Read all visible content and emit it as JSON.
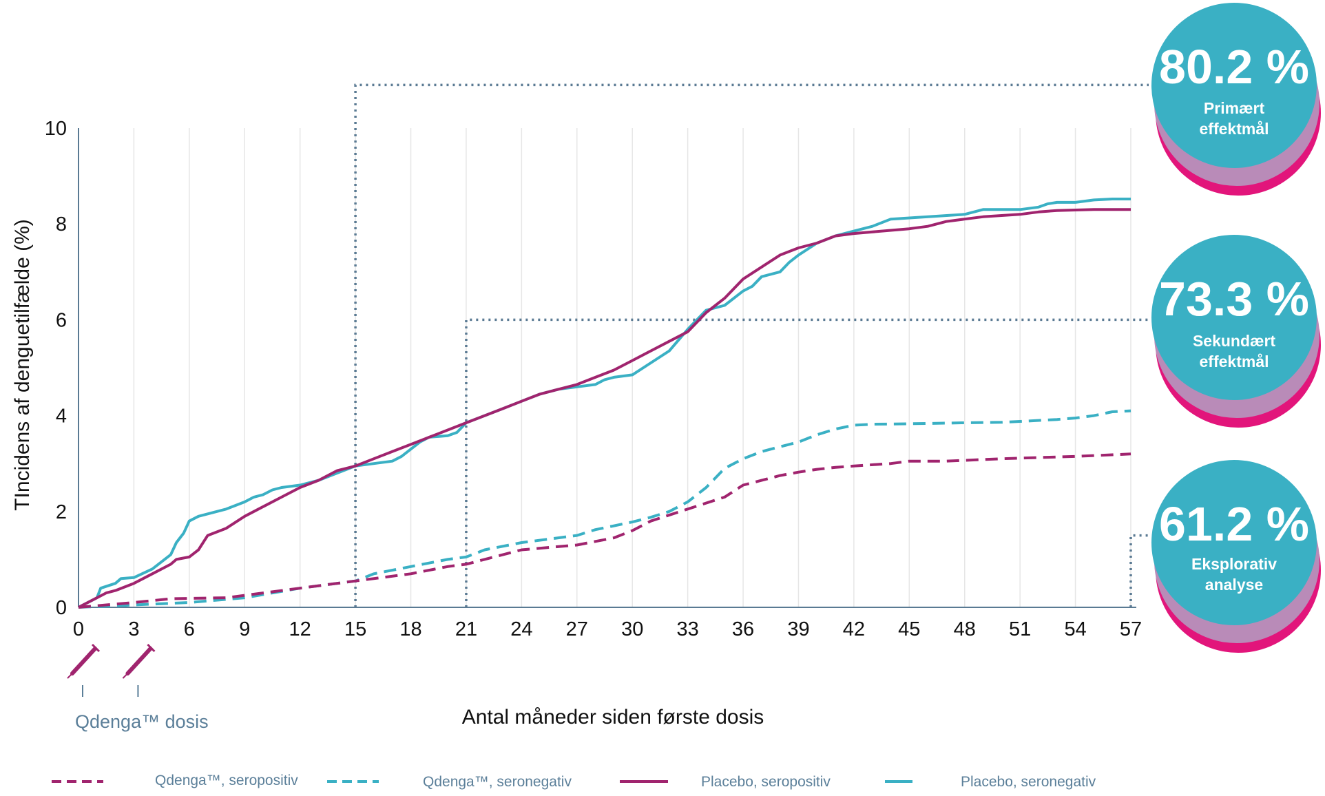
{
  "colors": {
    "placebo_seropositive": "#a0246e",
    "placebo_seronegative": "#3ab0c4",
    "qdenga_seropositive": "#a0246e",
    "qdenga_seronegative": "#3ab0c4",
    "reference_lines": "#5a7a93",
    "badge_fill": "#3ab0c4",
    "badge_shadow": "#e2157b",
    "dose_label": "#5b7f99"
  },
  "chart_data": {
    "type": "line",
    "xlabel": "Antal måneder siden første dosis",
    "ylabel": "TIncidens af denguetilfælde (%)",
    "xlim": [
      0,
      57
    ],
    "ylim": [
      0,
      10
    ],
    "x_ticks": [
      0,
      3,
      6,
      9,
      12,
      15,
      18,
      21,
      24,
      27,
      30,
      33,
      36,
      39,
      42,
      45,
      48,
      51,
      54,
      57
    ],
    "x_tick_labels": [
      "0",
      "3",
      "6",
      "9",
      "12",
      "15",
      "18",
      "21",
      "24",
      "27",
      "30",
      "33",
      "36",
      "39",
      "42",
      "45",
      "48",
      "51",
      "54",
      "57"
    ],
    "y_ticks": [
      0,
      2,
      4,
      6,
      8,
      10
    ],
    "y_tick_labels": [
      "0",
      "2",
      "4",
      "6",
      "8",
      "10"
    ],
    "grid": "vertical",
    "legend_position": "bottom",
    "series": [
      {
        "name": "Placebo, seronegativ",
        "style": "solid",
        "color": "#3ab0c4",
        "x": [
          0,
          1,
          1.2,
          2,
          2.3,
          3,
          4,
          5,
          5.3,
          5.7,
          6,
          6.5,
          7,
          8,
          9,
          9.5,
          10,
          10.5,
          11,
          12,
          13,
          14,
          15,
          16,
          17,
          17.5,
          18,
          18.5,
          19,
          20,
          20.5,
          21,
          22,
          23,
          24,
          25,
          26,
          27,
          28,
          28.5,
          29,
          30,
          31,
          32,
          33,
          34,
          35,
          36,
          36.5,
          37,
          38,
          38.5,
          39,
          40,
          41,
          42,
          43,
          44,
          48,
          49,
          51,
          52,
          52.5,
          53,
          54,
          55,
          56,
          57
        ],
        "y": [
          0,
          0.2,
          0.4,
          0.5,
          0.6,
          0.62,
          0.8,
          1.1,
          1.35,
          1.55,
          1.8,
          1.9,
          1.95,
          2.05,
          2.2,
          2.3,
          2.35,
          2.45,
          2.5,
          2.55,
          2.65,
          2.8,
          2.95,
          3.0,
          3.05,
          3.15,
          3.3,
          3.45,
          3.55,
          3.58,
          3.65,
          3.85,
          4.0,
          4.15,
          4.3,
          4.45,
          4.55,
          4.6,
          4.65,
          4.75,
          4.8,
          4.85,
          5.1,
          5.35,
          5.8,
          6.2,
          6.3,
          6.6,
          6.7,
          6.9,
          7.0,
          7.2,
          7.35,
          7.6,
          7.75,
          7.85,
          7.95,
          8.1,
          8.2,
          8.3,
          8.3,
          8.35,
          8.42,
          8.45,
          8.45,
          8.5,
          8.52,
          8.52
        ]
      },
      {
        "name": "Placebo, seropositiv",
        "style": "solid",
        "color": "#a0246e",
        "x": [
          0,
          1,
          1.5,
          2,
          3,
          4,
          5,
          5.3,
          6,
          6.5,
          7,
          8,
          9,
          10,
          11,
          12,
          13,
          14,
          15,
          16,
          17,
          18,
          19,
          20,
          21,
          22,
          23,
          24,
          25,
          26,
          27,
          28,
          29,
          30,
          31,
          32,
          33,
          34,
          35,
          36,
          37,
          38,
          39,
          40,
          41,
          42,
          45,
          46,
          47,
          48,
          49,
          51,
          52,
          53,
          55,
          57
        ],
        "y": [
          0,
          0.2,
          0.3,
          0.35,
          0.5,
          0.7,
          0.9,
          1.0,
          1.05,
          1.2,
          1.5,
          1.65,
          1.9,
          2.1,
          2.3,
          2.5,
          2.65,
          2.85,
          2.95,
          3.1,
          3.25,
          3.4,
          3.55,
          3.7,
          3.85,
          4.0,
          4.15,
          4.3,
          4.45,
          4.55,
          4.65,
          4.8,
          4.95,
          5.15,
          5.35,
          5.55,
          5.75,
          6.15,
          6.45,
          6.85,
          7.1,
          7.35,
          7.5,
          7.6,
          7.75,
          7.8,
          7.9,
          7.95,
          8.05,
          8.1,
          8.15,
          8.2,
          8.25,
          8.28,
          8.3,
          8.3
        ]
      },
      {
        "name": "Qdenga™, seronegativ",
        "style": "dashed",
        "color": "#3ab0c4",
        "x": [
          0,
          3,
          6,
          9,
          12,
          15,
          16,
          18,
          20,
          21,
          22,
          24,
          27,
          28,
          30,
          31,
          32,
          33,
          34,
          35,
          36,
          37,
          38,
          39,
          40,
          41,
          42,
          43,
          45,
          48,
          50,
          51,
          53,
          54,
          55,
          56,
          57
        ],
        "y": [
          0,
          0.05,
          0.1,
          0.2,
          0.4,
          0.55,
          0.7,
          0.85,
          1.0,
          1.05,
          1.2,
          1.35,
          1.5,
          1.62,
          1.78,
          1.88,
          2.0,
          2.2,
          2.5,
          2.9,
          3.1,
          3.25,
          3.35,
          3.45,
          3.6,
          3.72,
          3.8,
          3.82,
          3.83,
          3.85,
          3.86,
          3.88,
          3.92,
          3.95,
          4.0,
          4.08,
          4.1
        ]
      },
      {
        "name": "Qdenga™, seropositiv",
        "style": "dashed",
        "color": "#a0246e",
        "x": [
          0,
          3,
          5,
          8,
          9,
          12,
          15,
          18,
          20,
          21,
          24,
          27,
          29,
          30,
          31,
          33,
          35,
          36,
          37,
          38,
          39,
          40,
          41,
          42,
          44,
          45,
          47,
          50,
          54,
          57
        ],
        "y": [
          0,
          0.1,
          0.18,
          0.2,
          0.25,
          0.4,
          0.55,
          0.7,
          0.85,
          0.9,
          1.2,
          1.3,
          1.45,
          1.6,
          1.8,
          2.05,
          2.3,
          2.55,
          2.65,
          2.75,
          2.82,
          2.88,
          2.92,
          2.95,
          3.0,
          3.05,
          3.05,
          3.1,
          3.15,
          3.2
        ]
      }
    ],
    "reference_lines": [
      {
        "x_month": 15,
        "y_value": 10.9,
        "label": "80.2 %"
      },
      {
        "x_month": 21,
        "y_value": 6.0,
        "label": "73.3 %"
      },
      {
        "x_month": 57,
        "y_value": 1.5,
        "label": "61.2 %"
      }
    ],
    "dose_markers": [
      0,
      3
    ],
    "dose_label": "Qdenga™ dosis"
  },
  "badges": [
    {
      "value": "80.2 %",
      "line1": "Primært",
      "line2": "effektmål"
    },
    {
      "value": "73.3 %",
      "line1": "Sekundært",
      "line2": "effektmål"
    },
    {
      "value": "61.2 %",
      "line1": "Eksplorativ",
      "line2": "analyse"
    }
  ],
  "legend": [
    {
      "label": "Qdenga™, seropositiv",
      "color": "#a0246e",
      "style": "dashed"
    },
    {
      "label": "Qdenga™, seronegativ",
      "color": "#3ab0c4",
      "style": "dashed"
    },
    {
      "label": "Placebo, seropositiv",
      "color": "#a0246e",
      "style": "solid"
    },
    {
      "label": "Placebo, seronegativ",
      "color": "#3ab0c4",
      "style": "solid"
    }
  ]
}
